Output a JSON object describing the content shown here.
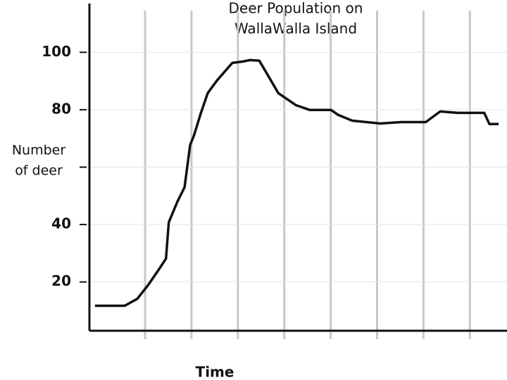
{
  "chart_data": {
    "type": "line",
    "title": [
      "Deer Population on",
      "WallaWalla Island"
    ],
    "xlabel": "Time",
    "ylabel": [
      "Number",
      "of deer"
    ],
    "x": [
      1.2,
      7.6,
      10.3,
      12.6,
      14.9,
      16.5,
      17.1,
      19.0,
      20.5,
      21.7,
      22.5,
      24.0,
      25.5,
      27.5,
      30.8,
      33.1,
      34.6,
      36.6,
      38.4,
      40.7,
      44.5,
      47.5,
      52.1,
      53.6,
      56.6,
      62.7,
      67.2,
      70.3,
      72.5,
      75.6,
      79.4,
      85.1,
      86.2,
      88.2
    ],
    "values": [
      11.7,
      11.7,
      14.1,
      18.8,
      24.2,
      28.1,
      40.8,
      48.1,
      53.0,
      67.7,
      70.9,
      78.7,
      85.8,
      90.2,
      96.3,
      96.8,
      97.3,
      97.1,
      92.2,
      85.8,
      81.6,
      79.9,
      79.9,
      78.2,
      76.2,
      75.2,
      75.7,
      75.7,
      75.7,
      79.4,
      78.9,
      78.9,
      75.0,
      75.0
    ],
    "color": "#111111",
    "xlim": [
      0,
      90
    ],
    "xticks": [
      {
        "value": 12,
        "label": null
      },
      {
        "value": 22,
        "label": null
      },
      {
        "value": 32,
        "label": null
      },
      {
        "value": 42,
        "label": null
      },
      {
        "value": 52,
        "label": null
      },
      {
        "value": 62,
        "label": null
      },
      {
        "value": 72,
        "label": null
      },
      {
        "value": 82,
        "label": null
      }
    ],
    "ylim": [
      3,
      117
    ],
    "yticks": [
      20,
      40,
      {
        "value": 60,
        "label": null
      },
      80,
      100
    ],
    "grid": true
  }
}
